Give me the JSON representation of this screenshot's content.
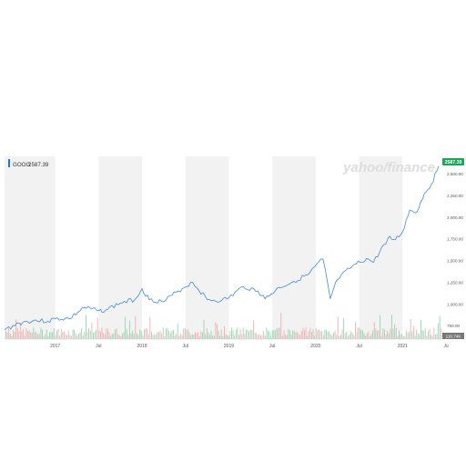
{
  "legend": {
    "symbol": "GOOG",
    "value": "2587.39",
    "color": "#1e74e8"
  },
  "price_tag": {
    "label": "2587.39",
    "color": "#1aa55a"
  },
  "volume_tag": {
    "label": "110.74K"
  },
  "watermark": "yahoo/finance",
  "colors": {
    "price_line": "#3f8be8",
    "band_fill": "#f2f2f2",
    "volume_up": "#7fd3a4",
    "volume_down": "#f3a3a3",
    "axis_text": "#555555"
  },
  "chart_data": {
    "type": "line",
    "title": "",
    "series": [
      {
        "name": "GOOG",
        "x": [
          "2016-06",
          "2016-08",
          "2016-10",
          "2016-12",
          "2017-01",
          "2017-03",
          "2017-05",
          "2017-07",
          "2017-08",
          "2017-10",
          "2017-12",
          "2018-01",
          "2018-02",
          "2018-04",
          "2018-06",
          "2018-08",
          "2018-10",
          "2018-12",
          "2019-01",
          "2019-03",
          "2019-05",
          "2019-06",
          "2019-08",
          "2019-10",
          "2019-12",
          "2020-02",
          "2020-03",
          "2020-04",
          "2020-06",
          "2020-08",
          "2020-09",
          "2020-11",
          "2020-12",
          "2021-01",
          "2021-02",
          "2021-03",
          "2021-04",
          "2021-05",
          "2021-06"
        ],
        "values": [
          700,
          780,
          810,
          800,
          830,
          830,
          960,
          920,
          930,
          1010,
          1050,
          1175,
          1050,
          1025,
          1150,
          1250,
          1050,
          1040,
          1070,
          1200,
          1150,
          1060,
          1190,
          1260,
          1340,
          1520,
          1060,
          1280,
          1430,
          1520,
          1480,
          1760,
          1740,
          1830,
          2080,
          2060,
          2270,
          2380,
          2587
        ]
      }
    ],
    "volume": {
      "up_color": "#7fd3a4",
      "down_color": "#f3a3a3"
    },
    "x_ticks": [
      "2017",
      "Jul",
      "2018",
      "Jul",
      "2019",
      "Jul",
      "2020",
      "Jul",
      "2021",
      "Ju"
    ],
    "y_ticks": [
      "2,500.00",
      "2,250.00",
      "2,000.00",
      "1,750.00",
      "1,500.00",
      "1,250.00",
      "1,000.00",
      "750.00"
    ],
    "ylim": [
      700,
      2700
    ],
    "grid": false
  }
}
